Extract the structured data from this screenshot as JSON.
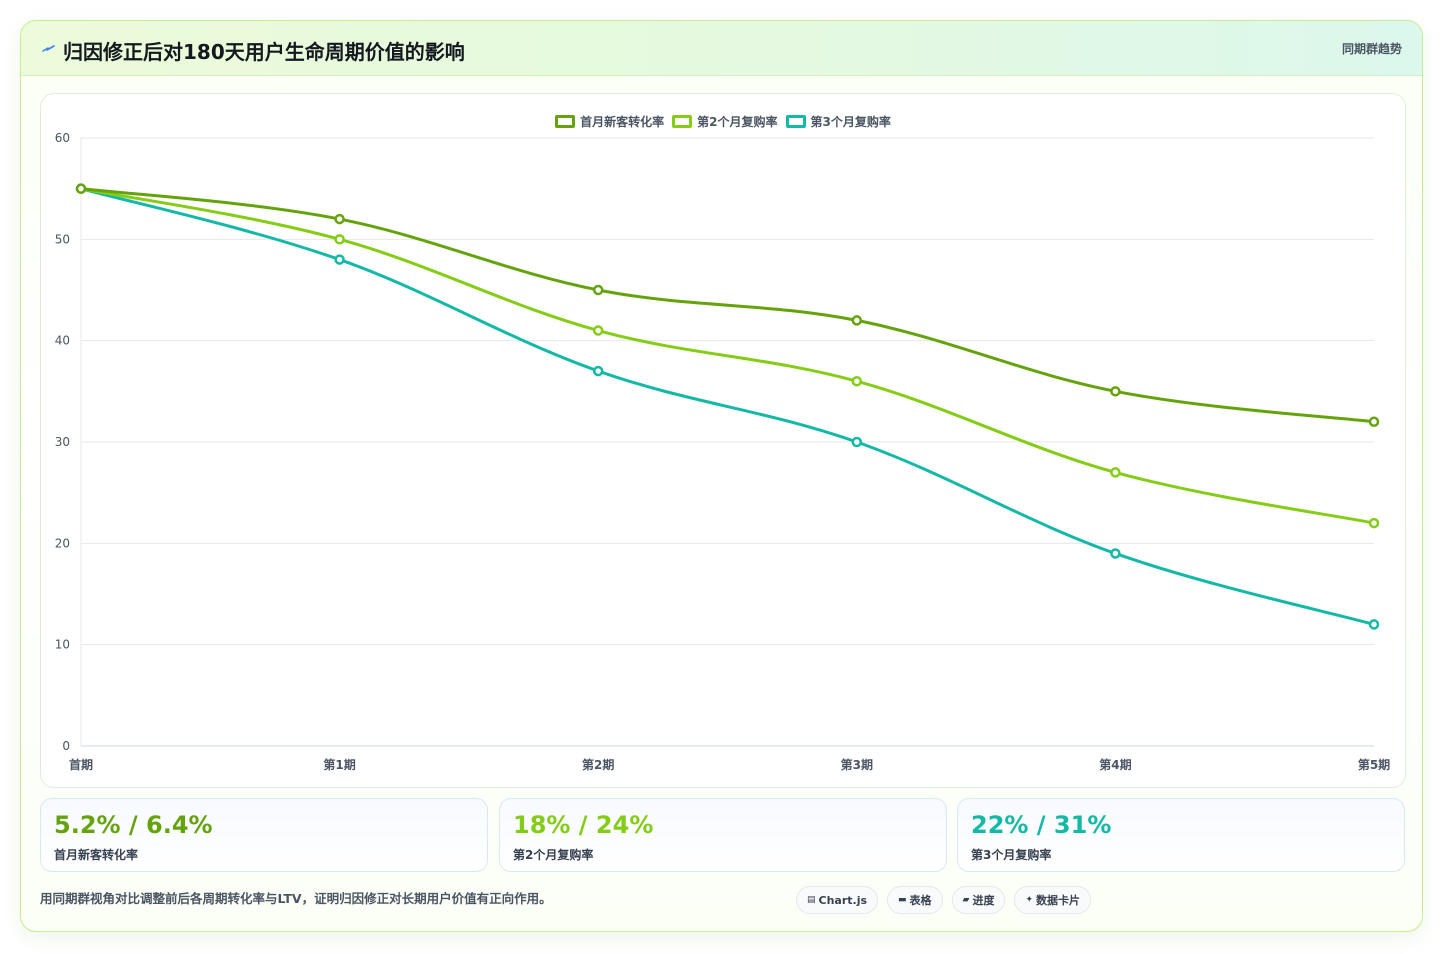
{
  "header": {
    "title": "归因修正后对180天用户生命周期价值的影响",
    "link": "同期群趋势",
    "icon": "lightning-icon"
  },
  "colors": {
    "series1": "#65a30d",
    "series2": "#84cc16",
    "series3": "#14b8a6"
  },
  "chart_data": {
    "type": "line",
    "categories": [
      "首期",
      "第1期",
      "第2期",
      "第3期",
      "第4期",
      "第5期"
    ],
    "series": [
      {
        "name": "首月新客转化率",
        "values": [
          55,
          52,
          45,
          42,
          35,
          32
        ]
      },
      {
        "name": "第2个月复购率",
        "values": [
          55,
          50,
          41,
          36,
          27,
          22
        ]
      },
      {
        "name": "第3个月复购率",
        "values": [
          55,
          48,
          37,
          30,
          19,
          12
        ]
      }
    ],
    "ylim": [
      0,
      60
    ],
    "yticks": [
      0,
      10,
      20,
      30,
      40,
      50,
      60
    ],
    "legend": "top-center",
    "grid": true,
    "title": "",
    "xlabel": "",
    "ylabel": ""
  },
  "kpis": [
    {
      "value": "5.2% / 6.4%",
      "label": "首月新客转化率"
    },
    {
      "value": "18% / 24%",
      "label": "第2个月复购率"
    },
    {
      "value": "22% / 31%",
      "label": "第3个月复购率"
    }
  ],
  "footnote": "用同期群视角对比调整前后各周期转化率与LTV，证明归因修正对长期用户价值有正向作用。",
  "tags": [
    {
      "icon": "chart-icon",
      "label": "Chart.js"
    },
    {
      "icon": "table-icon",
      "label": "表格"
    },
    {
      "icon": "progress-icon",
      "label": "进度"
    },
    {
      "icon": "sparkle-icon",
      "label": "数据卡片"
    }
  ]
}
